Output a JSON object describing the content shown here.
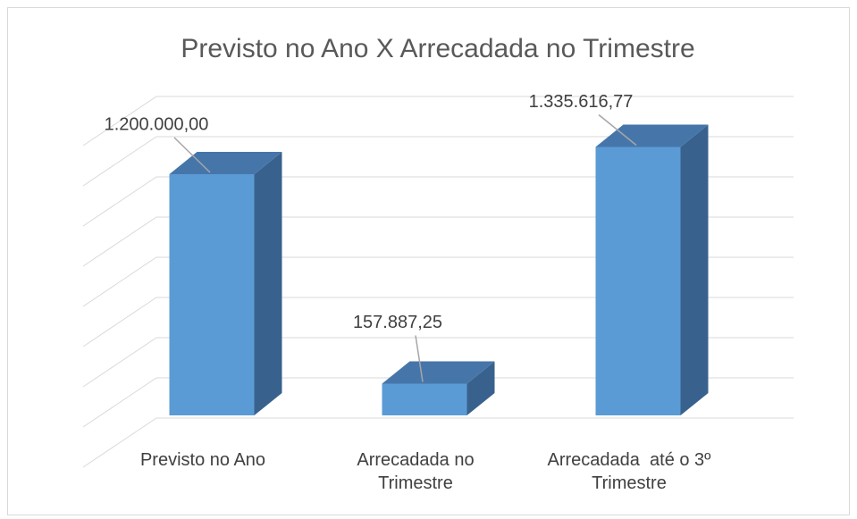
{
  "chart_data": {
    "type": "bar",
    "title": "Previsto no Ano X Arrecadada no Trimestre",
    "categories": [
      "Previsto no Ano",
      "Arrecadada no Trimestre",
      "Arrecadada  até o 3º Trimestre"
    ],
    "values": [
      1200000,
      157887.25,
      1335616.77
    ],
    "value_labels": [
      "1.200.000,00",
      "157.887,25",
      "1.335.616,77"
    ],
    "color": "#5b9bd5",
    "ylim": [
      0,
      1600000
    ],
    "yticks": [
      0,
      200000,
      400000,
      600000,
      800000,
      1000000,
      1200000,
      1400000,
      1600000
    ],
    "grid": true
  }
}
